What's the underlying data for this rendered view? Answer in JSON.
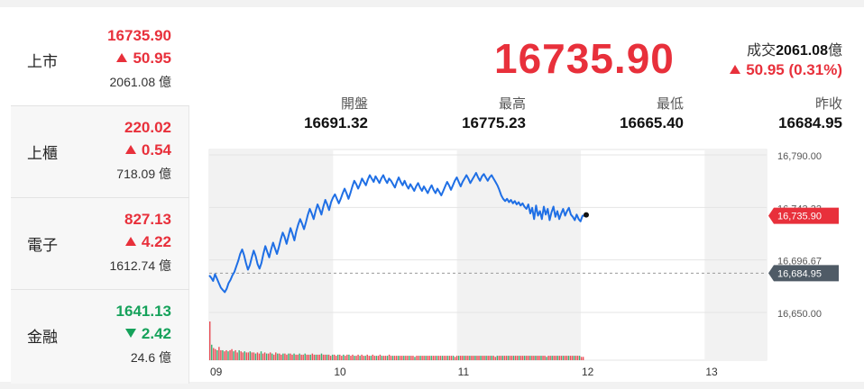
{
  "sidebar": {
    "items": [
      {
        "name": "上市",
        "price": "16735.90",
        "change": "50.95",
        "direction": "up",
        "volume": "2061.08 億",
        "active": true
      },
      {
        "name": "上櫃",
        "price": "220.02",
        "change": "0.54",
        "direction": "up",
        "volume": "718.09 億",
        "active": false
      },
      {
        "name": "電子",
        "price": "827.13",
        "change": "4.22",
        "direction": "up",
        "volume": "1612.74 億",
        "active": false
      },
      {
        "name": "金融",
        "price": "1641.13",
        "change": "2.42",
        "direction": "down",
        "volume": "24.6 億",
        "active": false
      }
    ]
  },
  "header": {
    "price": "16735.90",
    "volume_label": "成交",
    "volume_value": "2061.08",
    "volume_unit": "億",
    "change": "50.95 (0.31%)",
    "stats": [
      {
        "label": "開盤",
        "value": "16691.32"
      },
      {
        "label": "最高",
        "value": "16775.23"
      },
      {
        "label": "最低",
        "value": "16665.40"
      },
      {
        "label": "昨收",
        "value": "16684.95"
      }
    ]
  },
  "colors": {
    "up": "#e8303b",
    "down": "#16a25b",
    "line": "#1f6fe5",
    "prev_close_tag": "#4f5b66"
  },
  "chart_data": {
    "type": "line",
    "x_ticks": [
      "09",
      "10",
      "11",
      "12",
      "13"
    ],
    "y_ticks": [
      "16,790.00",
      "16,743.33",
      "16,696.67",
      "16,650.00"
    ],
    "ylim": [
      16650,
      16790
    ],
    "current_tag": "16,735.90",
    "prev_close_tag": "16,684.95",
    "prev_close": 16684.95,
    "current": 16735.9,
    "series": [
      {
        "values": [
          16683,
          16681,
          16678,
          16684,
          16680,
          16676,
          16672,
          16670,
          16668,
          16671,
          16676,
          16679,
          16683,
          16686,
          16691,
          16696,
          16702,
          16706,
          16701,
          16694,
          16688,
          16692,
          16699,
          16705,
          16700,
          16693,
          16689,
          16694,
          16702,
          16709,
          16704,
          16699,
          16706,
          16712,
          16707,
          16702,
          16708,
          16715,
          16721,
          16717,
          16711,
          16718,
          16725,
          16720,
          16714,
          16722,
          16728,
          16733,
          16729,
          16724,
          16730,
          16737,
          16742,
          16738,
          16733,
          16740,
          16746,
          16742,
          16737,
          16744,
          16750,
          16746,
          16741,
          16748,
          16752,
          16755,
          16751,
          16747,
          16751,
          16756,
          16760,
          16756,
          16751,
          16756,
          16762,
          16767,
          16764,
          16760,
          16764,
          16769,
          16766,
          16763,
          16768,
          16772,
          16769,
          16766,
          16771,
          16768,
          16765,
          16769,
          16772,
          16768,
          16765,
          16769,
          16767,
          16764,
          16761,
          16766,
          16770,
          16766,
          16763,
          16767,
          16763,
          16760,
          16764,
          16761,
          16758,
          16762,
          16765,
          16761,
          16758,
          16762,
          16759,
          16756,
          16760,
          16763,
          16759,
          16756,
          16760,
          16757,
          16754,
          16758,
          16762,
          16766,
          16763,
          16759,
          16763,
          16767,
          16770,
          16766,
          16762,
          16766,
          16769,
          16772,
          16769,
          16765,
          16768,
          16771,
          16774,
          16770,
          16767,
          16771,
          16773,
          16770,
          16767,
          16770,
          16772,
          16769,
          16766,
          16763,
          16759,
          16754,
          16751,
          16749,
          16751,
          16748,
          16750,
          16747,
          16749,
          16746,
          16748,
          16745,
          16747,
          16744,
          16742,
          16746,
          16738,
          16743,
          16733,
          16745,
          16736,
          16740,
          16733,
          16744,
          16737,
          16742,
          16732,
          16739,
          16744,
          16735,
          16740,
          16733,
          16738,
          16742,
          16736,
          16740,
          16743,
          16737,
          16735,
          16732,
          16737,
          16733,
          16731,
          16736,
          16735.9
        ]
      }
    ],
    "volume_bars": [
      35,
      14,
      11,
      10,
      9,
      12,
      9,
      9,
      8,
      9,
      8,
      9,
      10,
      8,
      9,
      7,
      9,
      8,
      7,
      8,
      7,
      7,
      8,
      7,
      7,
      6,
      7,
      6,
      8,
      6,
      7,
      6,
      6,
      7,
      6,
      5,
      7,
      6,
      6,
      5,
      6,
      6,
      5,
      6,
      6,
      5,
      6,
      5,
      5,
      6,
      5,
      5,
      6,
      5,
      5,
      5,
      6,
      5,
      5,
      5,
      5,
      6,
      5,
      5,
      5,
      5,
      4,
      5,
      5,
      4,
      5,
      5,
      4,
      5,
      4,
      5,
      5,
      4,
      5,
      4,
      4,
      5,
      4,
      5,
      4,
      4,
      5,
      4,
      4,
      5,
      4,
      4,
      4,
      5,
      4,
      4,
      4,
      4,
      5,
      4,
      4,
      4,
      4,
      4,
      4,
      4,
      4,
      4,
      4,
      4,
      4,
      4,
      3,
      4,
      4,
      4,
      4,
      4,
      4,
      4,
      4,
      4,
      4,
      4,
      4,
      4,
      4,
      4,
      4,
      4,
      4,
      4,
      4,
      4,
      3,
      4,
      4,
      4,
      4,
      4,
      4,
      4,
      4,
      4,
      4,
      4,
      4,
      4,
      4,
      4,
      4,
      4,
      4,
      4,
      4,
      4,
      3,
      4,
      4,
      4,
      4,
      4,
      4,
      4,
      4,
      4,
      4,
      4,
      4,
      4,
      4,
      4,
      4,
      4,
      4,
      4,
      4,
      4,
      4,
      4,
      4,
      4,
      4,
      4,
      3,
      4,
      4,
      4,
      4,
      4,
      4,
      4,
      4,
      4,
      4,
      4,
      4,
      4,
      4,
      4,
      4,
      4,
      4,
      3,
      3
    ]
  }
}
